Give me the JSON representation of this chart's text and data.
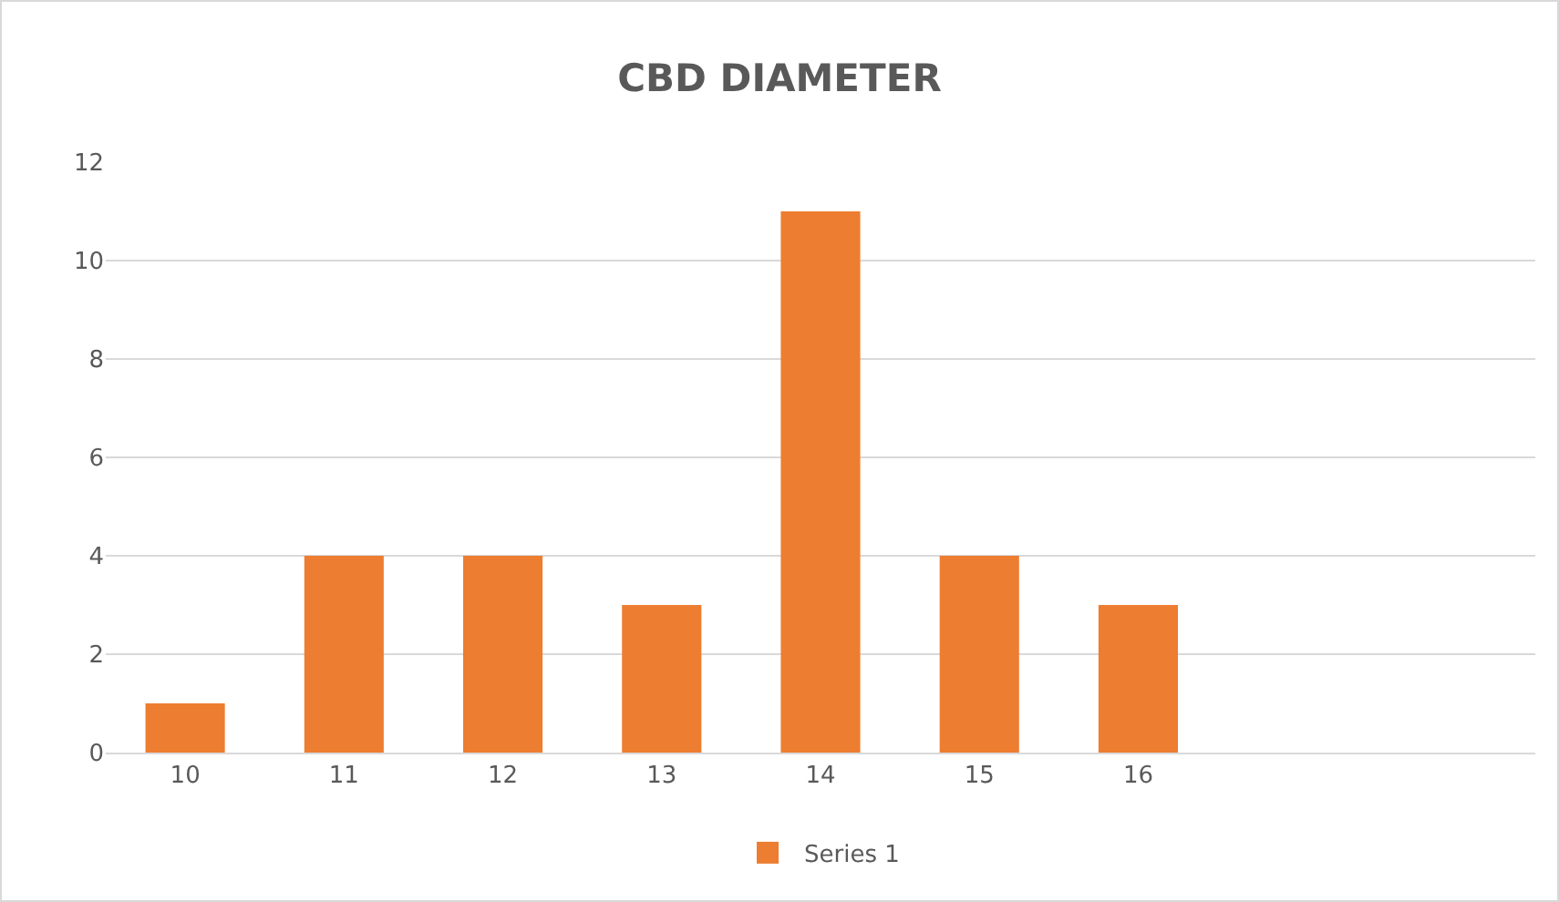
{
  "chart_data": {
    "type": "bar",
    "title": "CBD DIAMETER",
    "categories": [
      "10",
      "11",
      "12",
      "13",
      "14",
      "15",
      "16",
      null,
      null
    ],
    "series": [
      {
        "name": "Series 1",
        "color": "#ed7d31",
        "values": [
          1,
          4,
          4,
          3,
          11,
          4,
          3,
          null,
          null
        ]
      }
    ],
    "ylim": [
      0,
      12
    ],
    "yticks": [
      0,
      2,
      4,
      6,
      8,
      10,
      12
    ],
    "grid": "y",
    "legend": "bottom"
  }
}
